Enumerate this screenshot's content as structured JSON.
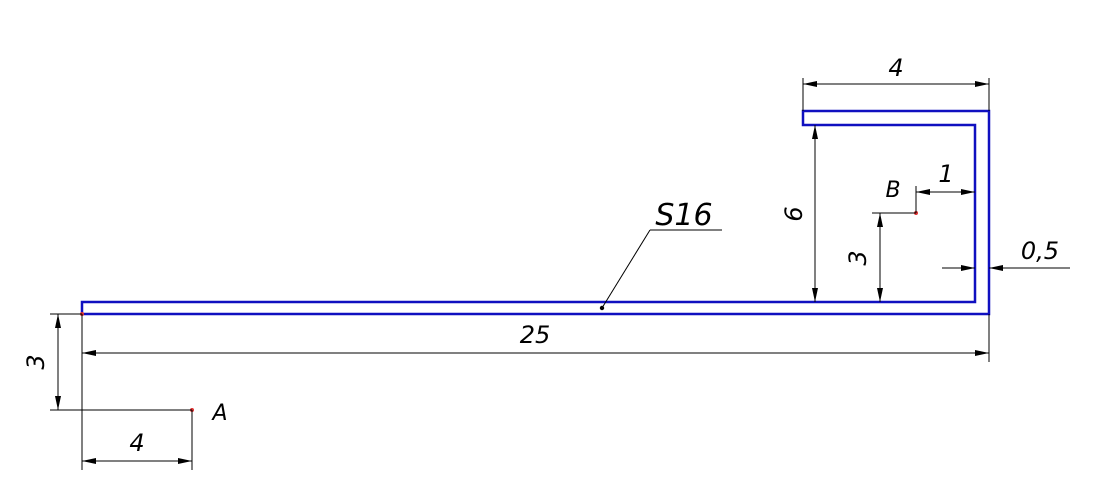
{
  "drawing": {
    "section_label": "S16",
    "point_labels": {
      "a": "A",
      "b": "B"
    },
    "dimensions": {
      "total_length": "25",
      "top_width": "4",
      "inner_height": "6",
      "point_b_height": "3",
      "point_b_offset": "1",
      "thickness": "0,5",
      "point_a_offset_x": "4",
      "point_a_offset_y": "3"
    },
    "colors": {
      "profile": "#1010c0",
      "points": "#e03030",
      "dimension_lines": "#000000"
    }
  }
}
